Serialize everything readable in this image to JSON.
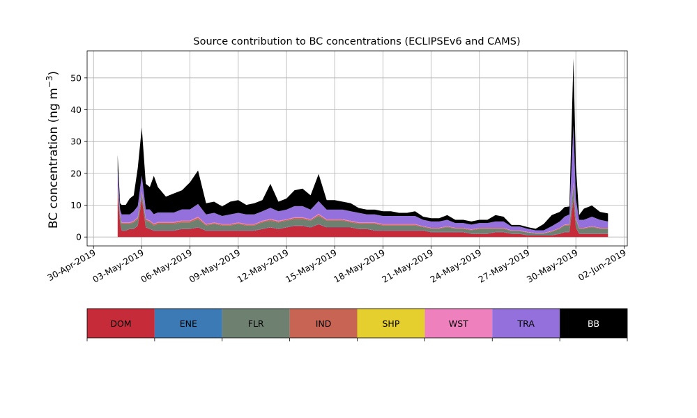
{
  "chart_data": {
    "type": "area",
    "stacked": true,
    "title": "Source contribution to BC concentrations (ECLIPSEv6 and CAMS)",
    "xlabel": "",
    "ylabel_main": "BC concentration (ng m",
    "ylabel_sup": "−3",
    "ylabel_close": ")",
    "grid": true,
    "xlim": [
      -0.4,
      33.2
    ],
    "ylim": [
      -2.8,
      58.5
    ],
    "x_tick_positions": [
      0,
      3,
      6,
      9,
      12,
      15,
      18,
      21,
      24,
      27,
      30,
      33
    ],
    "x_tick_labels": [
      "30-Apr-2019",
      "03-May-2019",
      "06-May-2019",
      "09-May-2019",
      "12-May-2019",
      "15-May-2019",
      "18-May-2019",
      "21-May-2019",
      "24-May-2019",
      "27-May-2019",
      "30-May-2019",
      "02-Jun-2019"
    ],
    "y_ticks": [
      0,
      10,
      20,
      30,
      40,
      50
    ],
    "y_tick_labels": [
      "0",
      "10",
      "20",
      "30",
      "40",
      "50"
    ],
    "x_days": [
      1.5,
      1.65,
      1.75,
      2.0,
      2.25,
      2.5,
      2.75,
      3.0,
      3.25,
      3.5,
      3.75,
      4.0,
      4.5,
      5.0,
      5.5,
      6.0,
      6.5,
      7.0,
      7.5,
      8.0,
      8.5,
      9.0,
      9.5,
      10.0,
      10.5,
      11.0,
      11.5,
      12.0,
      12.5,
      13.0,
      13.5,
      14.0,
      14.5,
      15.0,
      15.5,
      16.0,
      16.5,
      17.0,
      17.5,
      18.0,
      18.5,
      19.0,
      19.5,
      20.0,
      20.5,
      21.0,
      21.5,
      22.0,
      22.5,
      23.0,
      23.5,
      24.0,
      24.5,
      25.0,
      25.5,
      26.0,
      26.5,
      27.0,
      27.5,
      28.0,
      28.5,
      29.0,
      29.3,
      29.6,
      29.85,
      30.0,
      30.2,
      30.5,
      31.0,
      31.5,
      32.0
    ],
    "series": [
      {
        "name": "DOM",
        "color": "#c62b3a",
        "values": [
          13.5,
          4.5,
          2.0,
          2.0,
          2.5,
          2.5,
          3.5,
          12.0,
          3.0,
          2.5,
          2.0,
          2.0,
          2.0,
          2.0,
          2.5,
          2.5,
          3.0,
          2.0,
          2.0,
          2.0,
          2.0,
          2.0,
          2.0,
          2.0,
          2.5,
          3.0,
          2.5,
          3.0,
          3.5,
          3.5,
          3.0,
          4.0,
          3.0,
          3.0,
          3.0,
          3.0,
          2.5,
          2.5,
          2.0,
          2.0,
          2.0,
          2.0,
          2.0,
          2.0,
          2.0,
          1.5,
          1.5,
          1.5,
          1.5,
          1.5,
          1.0,
          1.0,
          1.0,
          1.5,
          1.5,
          1.0,
          1.0,
          0.5,
          0.5,
          0.5,
          0.5,
          1.0,
          1.5,
          1.5,
          12.0,
          3.0,
          1.0,
          1.0,
          1.0,
          1.0,
          1.0
        ]
      },
      {
        "name": "ENE",
        "color": "#3b7ab5",
        "values": [
          0.1,
          0.1,
          0.1,
          0.1,
          0.1,
          0.1,
          0.1,
          0.1,
          0.1,
          0.1,
          0.1,
          0.1,
          0.1,
          0.1,
          0.1,
          0.1,
          0.1,
          0.1,
          0.1,
          0.1,
          0.1,
          0.1,
          0.1,
          0.1,
          0.1,
          0.1,
          0.1,
          0.1,
          0.1,
          0.1,
          0.1,
          0.1,
          0.1,
          0.1,
          0.1,
          0.1,
          0.1,
          0.1,
          0.1,
          0.1,
          0.1,
          0.1,
          0.1,
          0.1,
          0.1,
          0.1,
          0.1,
          0.1,
          0.1,
          0.1,
          0.1,
          0.1,
          0.1,
          0.1,
          0.1,
          0.1,
          0.1,
          0.1,
          0.1,
          0.1,
          0.1,
          0.1,
          0.1,
          0.1,
          0.2,
          0.1,
          0.1,
          0.1,
          0.1,
          0.1,
          0.1
        ]
      },
      {
        "name": "FLR",
        "color": "#6e8070",
        "values": [
          1.5,
          2.0,
          2.0,
          2.0,
          1.5,
          2.0,
          2.0,
          1.5,
          2.0,
          2.0,
          1.5,
          2.0,
          2.0,
          2.0,
          2.0,
          2.0,
          2.5,
          1.5,
          2.0,
          1.5,
          1.5,
          2.0,
          1.5,
          1.5,
          2.0,
          2.0,
          2.0,
          2.0,
          2.0,
          2.0,
          2.0,
          2.5,
          2.0,
          2.0,
          2.0,
          1.5,
          1.5,
          1.5,
          2.0,
          1.5,
          1.5,
          1.5,
          1.5,
          1.5,
          1.0,
          1.0,
          1.0,
          1.5,
          1.0,
          1.0,
          1.0,
          1.5,
          1.5,
          1.0,
          1.0,
          0.8,
          0.8,
          0.8,
          0.5,
          0.5,
          1.0,
          1.5,
          2.0,
          2.0,
          4.0,
          2.5,
          1.5,
          1.5,
          2.0,
          1.5,
          1.5
        ]
      },
      {
        "name": "IND",
        "color": "#c86454",
        "values": [
          0.4,
          0.3,
          0.3,
          0.3,
          0.3,
          0.3,
          0.4,
          0.5,
          0.4,
          0.4,
          0.4,
          0.4,
          0.4,
          0.4,
          0.4,
          0.4,
          0.5,
          0.3,
          0.3,
          0.3,
          0.3,
          0.3,
          0.3,
          0.3,
          0.3,
          0.4,
          0.3,
          0.3,
          0.4,
          0.4,
          0.3,
          0.4,
          0.3,
          0.3,
          0.3,
          0.3,
          0.3,
          0.3,
          0.3,
          0.3,
          0.3,
          0.3,
          0.3,
          0.3,
          0.2,
          0.2,
          0.2,
          0.2,
          0.2,
          0.2,
          0.2,
          0.2,
          0.2,
          0.2,
          0.2,
          0.1,
          0.1,
          0.1,
          0.1,
          0.1,
          0.2,
          0.2,
          0.2,
          0.3,
          0.5,
          0.3,
          0.2,
          0.2,
          0.2,
          0.2,
          0.2
        ]
      },
      {
        "name": "SHP",
        "color": "#e5cf2f",
        "values": [
          0.0,
          0.0,
          0.0,
          0.0,
          0.0,
          0.0,
          0.0,
          0.0,
          0.0,
          0.0,
          0.0,
          0.0,
          0.0,
          0.0,
          0.0,
          0.0,
          0.0,
          0.0,
          0.0,
          0.0,
          0.0,
          0.0,
          0.0,
          0.0,
          0.0,
          0.0,
          0.0,
          0.0,
          0.0,
          0.0,
          0.0,
          0.0,
          0.0,
          0.0,
          0.0,
          0.0,
          0.0,
          0.0,
          0.0,
          0.0,
          0.0,
          0.0,
          0.0,
          0.0,
          0.0,
          0.0,
          0.0,
          0.0,
          0.0,
          0.0,
          0.0,
          0.0,
          0.0,
          0.0,
          0.0,
          0.0,
          0.0,
          0.0,
          0.0,
          0.0,
          0.0,
          0.0,
          0.0,
          0.0,
          0.0,
          0.0,
          0.0,
          0.0,
          0.0,
          0.0,
          0.0
        ]
      },
      {
        "name": "WST",
        "color": "#ef80be",
        "values": [
          0.3,
          0.2,
          0.2,
          0.2,
          0.2,
          0.2,
          0.2,
          0.3,
          0.2,
          0.2,
          0.2,
          0.2,
          0.2,
          0.2,
          0.2,
          0.2,
          0.3,
          0.2,
          0.2,
          0.2,
          0.2,
          0.2,
          0.2,
          0.2,
          0.2,
          0.2,
          0.2,
          0.2,
          0.2,
          0.2,
          0.2,
          0.3,
          0.2,
          0.2,
          0.2,
          0.2,
          0.2,
          0.2,
          0.2,
          0.2,
          0.2,
          0.2,
          0.2,
          0.2,
          0.1,
          0.1,
          0.1,
          0.1,
          0.1,
          0.1,
          0.1,
          0.1,
          0.1,
          0.1,
          0.1,
          0.1,
          0.1,
          0.1,
          0.1,
          0.1,
          0.1,
          0.1,
          0.1,
          0.2,
          0.4,
          0.2,
          0.1,
          0.1,
          0.1,
          0.1,
          0.1
        ]
      },
      {
        "name": "TRA",
        "color": "#9370db",
        "values": [
          5.0,
          1.5,
          2.5,
          2.5,
          2.5,
          3.0,
          3.5,
          5.0,
          3.0,
          3.5,
          3.0,
          3.0,
          3.0,
          3.0,
          3.5,
          3.5,
          4.0,
          3.0,
          3.0,
          2.5,
          3.0,
          3.0,
          3.0,
          3.0,
          3.0,
          3.5,
          3.0,
          3.0,
          3.5,
          3.5,
          3.0,
          4.0,
          3.0,
          3.0,
          3.0,
          3.0,
          3.0,
          2.5,
          2.5,
          2.5,
          2.5,
          2.5,
          2.5,
          2.5,
          2.0,
          2.0,
          2.0,
          2.0,
          1.5,
          1.5,
          1.5,
          1.5,
          1.5,
          2.0,
          2.0,
          1.2,
          1.2,
          1.0,
          0.8,
          0.8,
          1.5,
          2.0,
          2.5,
          3.0,
          18.0,
          6.0,
          2.5,
          2.5,
          3.0,
          2.5,
          2.0
        ]
      },
      {
        "name": "BB",
        "color": "#000000",
        "values": [
          5.0,
          2.0,
          3.0,
          3.0,
          5.0,
          5.0,
          12.0,
          15.0,
          8.0,
          7.0,
          12.0,
          8.0,
          5.0,
          6.0,
          6.0,
          8.5,
          10.5,
          3.5,
          3.5,
          3.0,
          4.0,
          4.0,
          3.0,
          3.5,
          3.5,
          7.5,
          3.0,
          3.5,
          5.0,
          5.5,
          4.5,
          8.5,
          3.0,
          3.0,
          2.5,
          2.5,
          1.5,
          1.5,
          1.5,
          1.5,
          1.5,
          1.0,
          1.0,
          1.5,
          1.0,
          1.0,
          1.0,
          1.5,
          1.0,
          1.0,
          1.0,
          1.0,
          1.0,
          2.0,
          1.5,
          0.5,
          0.5,
          0.5,
          0.5,
          2.0,
          3.5,
          3.0,
          3.0,
          2.5,
          21.0,
          10.5,
          1.5,
          3.5,
          3.5,
          2.5,
          2.5
        ]
      }
    ]
  }
}
